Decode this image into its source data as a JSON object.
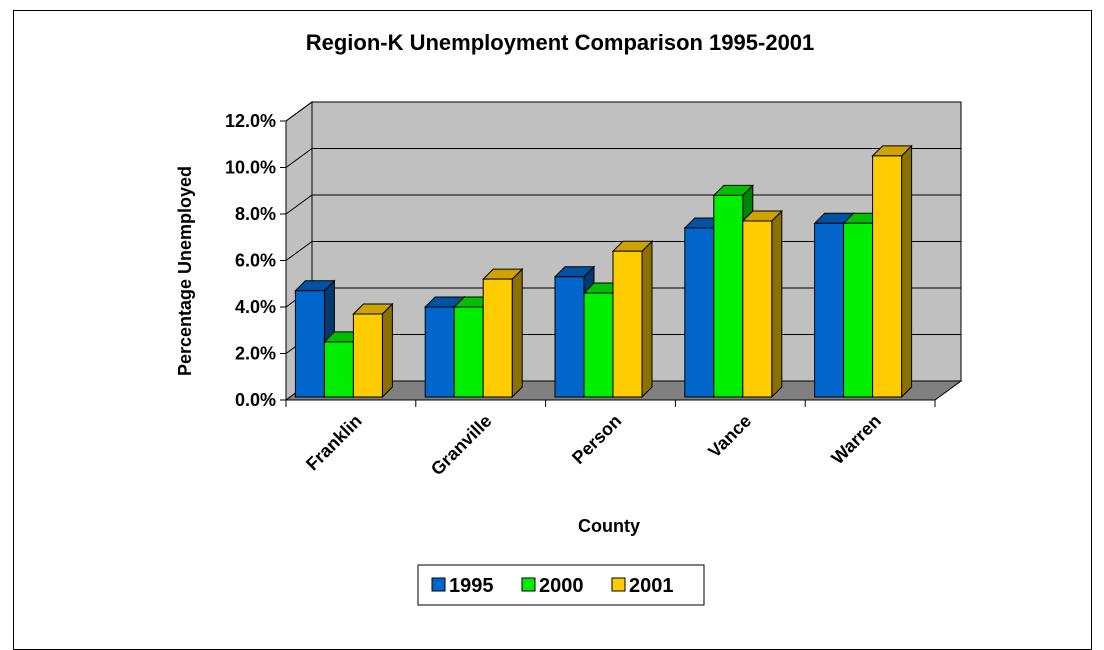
{
  "chart_data": {
    "type": "bar",
    "title": "Region-K Unemployment Comparison 1995-2001",
    "xlabel": "County",
    "ylabel": "Percentage Unemployed",
    "categories": [
      "Franklin",
      "Granville",
      "Person",
      "Vance",
      "Warren"
    ],
    "series": [
      {
        "name": "1995",
        "values": [
          4.7,
          4.0,
          5.3,
          7.4,
          7.6
        ],
        "color": "#0066cc"
      },
      {
        "name": "2000",
        "values": [
          2.5,
          4.0,
          4.6,
          8.8,
          7.6
        ],
        "color": "#00ee00"
      },
      {
        "name": "2001",
        "values": [
          3.7,
          5.2,
          6.4,
          7.7,
          10.5
        ],
        "color": "#ffcc00"
      }
    ],
    "yticks": [
      "0.0%",
      "2.0%",
      "4.0%",
      "6.0%",
      "8.0%",
      "10.0%",
      "12.0%"
    ],
    "ylim": [
      0,
      12
    ],
    "grid": true,
    "legend_position": "bottom",
    "wall_color": "#c0c0c0",
    "floor_color": "#808080"
  }
}
